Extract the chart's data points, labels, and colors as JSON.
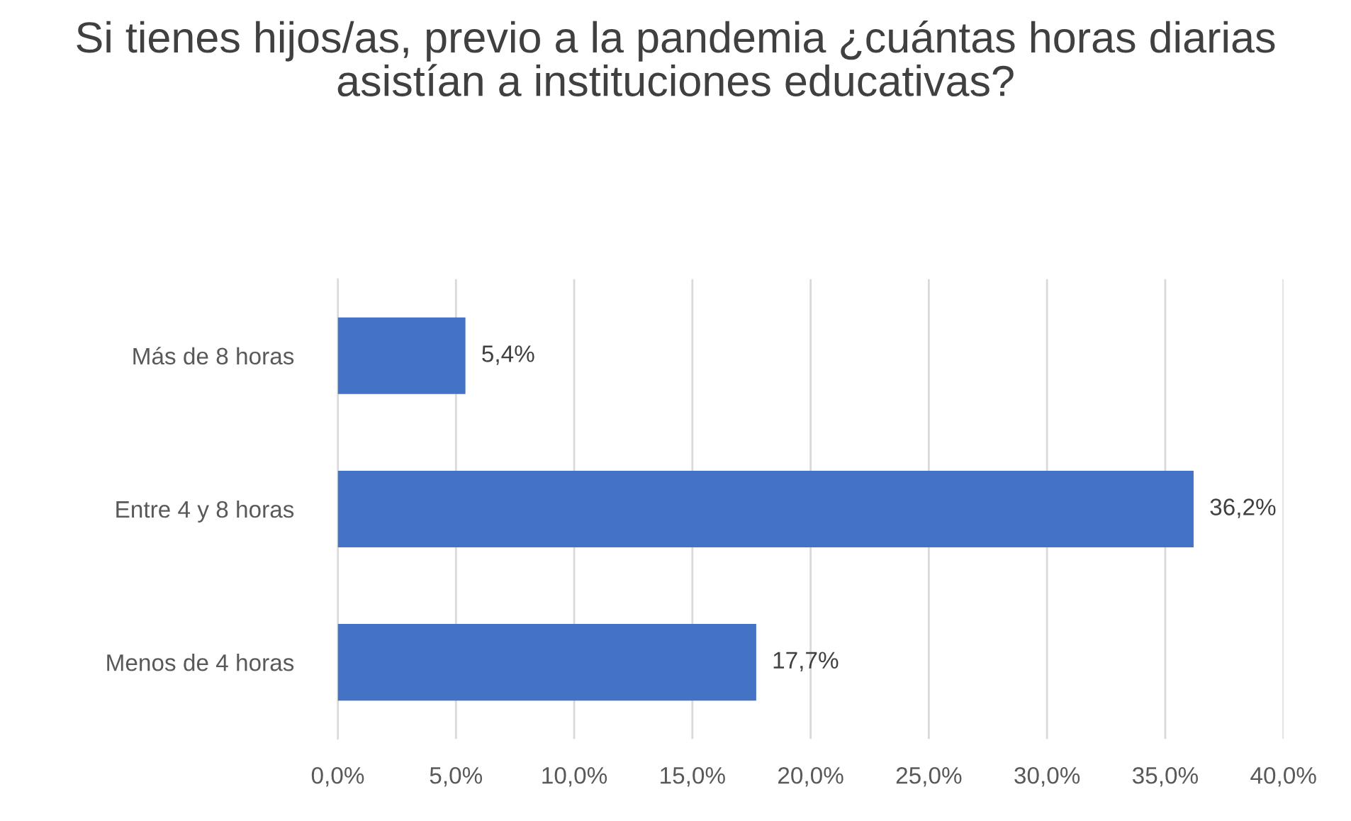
{
  "chart_data": {
    "type": "bar",
    "orientation": "horizontal",
    "title": "Si tienes hijos/as, previo a la pandemia ¿cuántas horas diarias asistían a instituciones educativas?",
    "categories": [
      "Más de 8 horas",
      "Entre 4 y 8 horas",
      "Menos de 4 horas"
    ],
    "values": [
      5.4,
      36.2,
      17.7
    ],
    "value_labels": [
      "5,4%",
      "36,2%",
      "17,7%"
    ],
    "color": "#4472c4",
    "xlim": [
      0,
      40
    ],
    "xticks": [
      {
        "value": 0,
        "label": "0,0%"
      },
      {
        "value": 5,
        "label": "5,0%"
      },
      {
        "value": 10,
        "label": "10,0%"
      },
      {
        "value": 15,
        "label": "15,0%"
      },
      {
        "value": 20,
        "label": "20,0%"
      },
      {
        "value": 25,
        "label": "25,0%"
      },
      {
        "value": 30,
        "label": "30,0%"
      },
      {
        "value": 35,
        "label": "35,0%"
      },
      {
        "value": 40,
        "label": "40,0%"
      }
    ],
    "grid": "x"
  }
}
